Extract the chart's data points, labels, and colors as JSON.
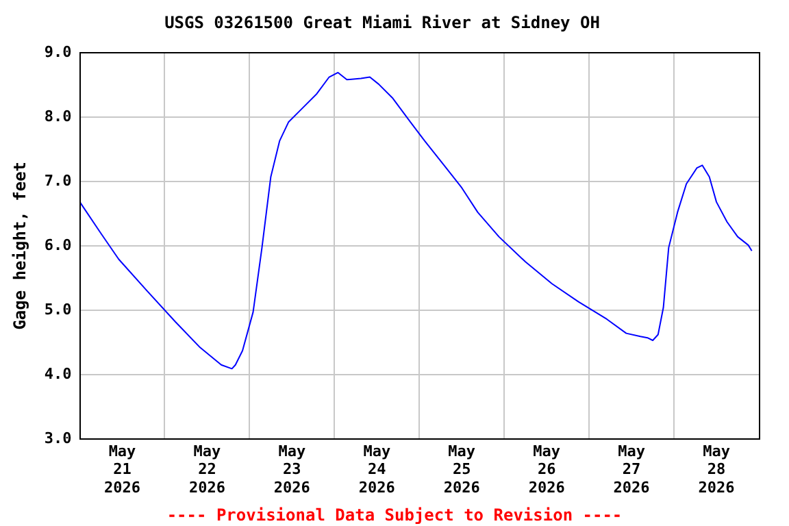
{
  "chart_data": {
    "type": "line",
    "title": "USGS 03261500 Great Miami River at Sidney OH",
    "ylabel": "Gage height, feet",
    "annotations": [
      "---- Provisional Data Subject to Revision ----"
    ],
    "x": [
      "2026-05-20T12:00",
      "2026-05-20T18:00",
      "2026-05-20T23:00",
      "2026-05-21T07:00",
      "2026-05-21T15:00",
      "2026-05-21T22:00",
      "2026-05-22T04:00",
      "2026-05-22T07:00",
      "2026-05-22T08:00",
      "2026-05-22T10:00",
      "2026-05-22T13:00",
      "2026-05-22T15:30",
      "2026-05-22T18:00",
      "2026-05-22T20:30",
      "2026-05-22T23:00",
      "2026-05-23T03:00",
      "2026-05-23T07:00",
      "2026-05-23T10:30",
      "2026-05-23T13:00",
      "2026-05-23T15:30",
      "2026-05-23T19:30",
      "2026-05-23T22:00",
      "2026-05-24T00:30",
      "2026-05-24T04:30",
      "2026-05-24T09:30",
      "2026-05-24T13:30",
      "2026-05-24T19:00",
      "2026-05-25T00:00",
      "2026-05-25T04:30",
      "2026-05-25T10:30",
      "2026-05-25T18:00",
      "2026-05-26T01:30",
      "2026-05-26T09:00",
      "2026-05-26T17:00",
      "2026-05-26T22:30",
      "2026-05-27T02:30",
      "2026-05-27T04:30",
      "2026-05-27T06:00",
      "2026-05-27T07:30",
      "2026-05-27T09:00",
      "2026-05-27T10:30",
      "2026-05-27T13:00",
      "2026-05-27T15:30",
      "2026-05-27T18:30",
      "2026-05-27T20:00",
      "2026-05-27T22:00",
      "2026-05-28T00:00",
      "2026-05-28T03:00",
      "2026-05-28T06:00",
      "2026-05-28T09:00",
      "2026-05-28T10:00"
    ],
    "series": [
      {
        "color": "#0000ff",
        "values": [
          6.68,
          6.19,
          5.79,
          5.3,
          4.82,
          4.42,
          4.15,
          4.09,
          4.15,
          4.37,
          4.97,
          5.97,
          7.07,
          7.63,
          7.92,
          8.14,
          8.36,
          8.62,
          8.69,
          8.58,
          8.6,
          8.62,
          8.51,
          8.29,
          7.92,
          7.63,
          7.25,
          6.9,
          6.52,
          6.14,
          5.75,
          5.41,
          5.13,
          4.86,
          4.64,
          4.59,
          4.57,
          4.53,
          4.62,
          5.04,
          5.97,
          6.52,
          6.96,
          7.21,
          7.25,
          7.07,
          6.68,
          6.37,
          6.14,
          6.01,
          5.92
        ]
      }
    ],
    "xlim": [
      "2026-05-20T12:00",
      "2026-05-28T12:00"
    ],
    "xticks": [
      {
        "value": "2026-05-21",
        "label": "May\n21\n2026"
      },
      {
        "value": "2026-05-21T12:00",
        "label": null
      },
      {
        "value": "2026-05-22",
        "label": "May\n22\n2026"
      },
      {
        "value": "2026-05-22T12:00",
        "label": null
      },
      {
        "value": "2026-05-23",
        "label": "May\n23\n2026"
      },
      {
        "value": "2026-05-23T12:00",
        "label": null
      },
      {
        "value": "2026-05-24",
        "label": "May\n24\n2026"
      },
      {
        "value": "2026-05-24T12:00",
        "label": null
      },
      {
        "value": "2026-05-25",
        "label": "May\n25\n2026"
      },
      {
        "value": "2026-05-25T12:00",
        "label": null
      },
      {
        "value": "2026-05-26",
        "label": "May\n26\n2026"
      },
      {
        "value": "2026-05-26T12:00",
        "label": null
      },
      {
        "value": "2026-05-27",
        "label": "May\n27\n2026"
      },
      {
        "value": "2026-05-27T12:00",
        "label": null
      },
      {
        "value": "2026-05-28",
        "label": "May\n28\n2026"
      }
    ],
    "ylim": [
      3,
      9
    ],
    "yticks": [
      {
        "value": 3,
        "label": "3.0"
      },
      {
        "value": 4,
        "label": "4.0"
      },
      {
        "value": 5,
        "label": "5.0"
      },
      {
        "value": 6,
        "label": "6.0"
      },
      {
        "value": 7,
        "label": "7.0"
      },
      {
        "value": 8,
        "label": "8.0"
      },
      {
        "value": 9,
        "label": "9.0"
      }
    ],
    "grid": true,
    "legend": false,
    "marker": "none",
    "line_style": "solid"
  }
}
